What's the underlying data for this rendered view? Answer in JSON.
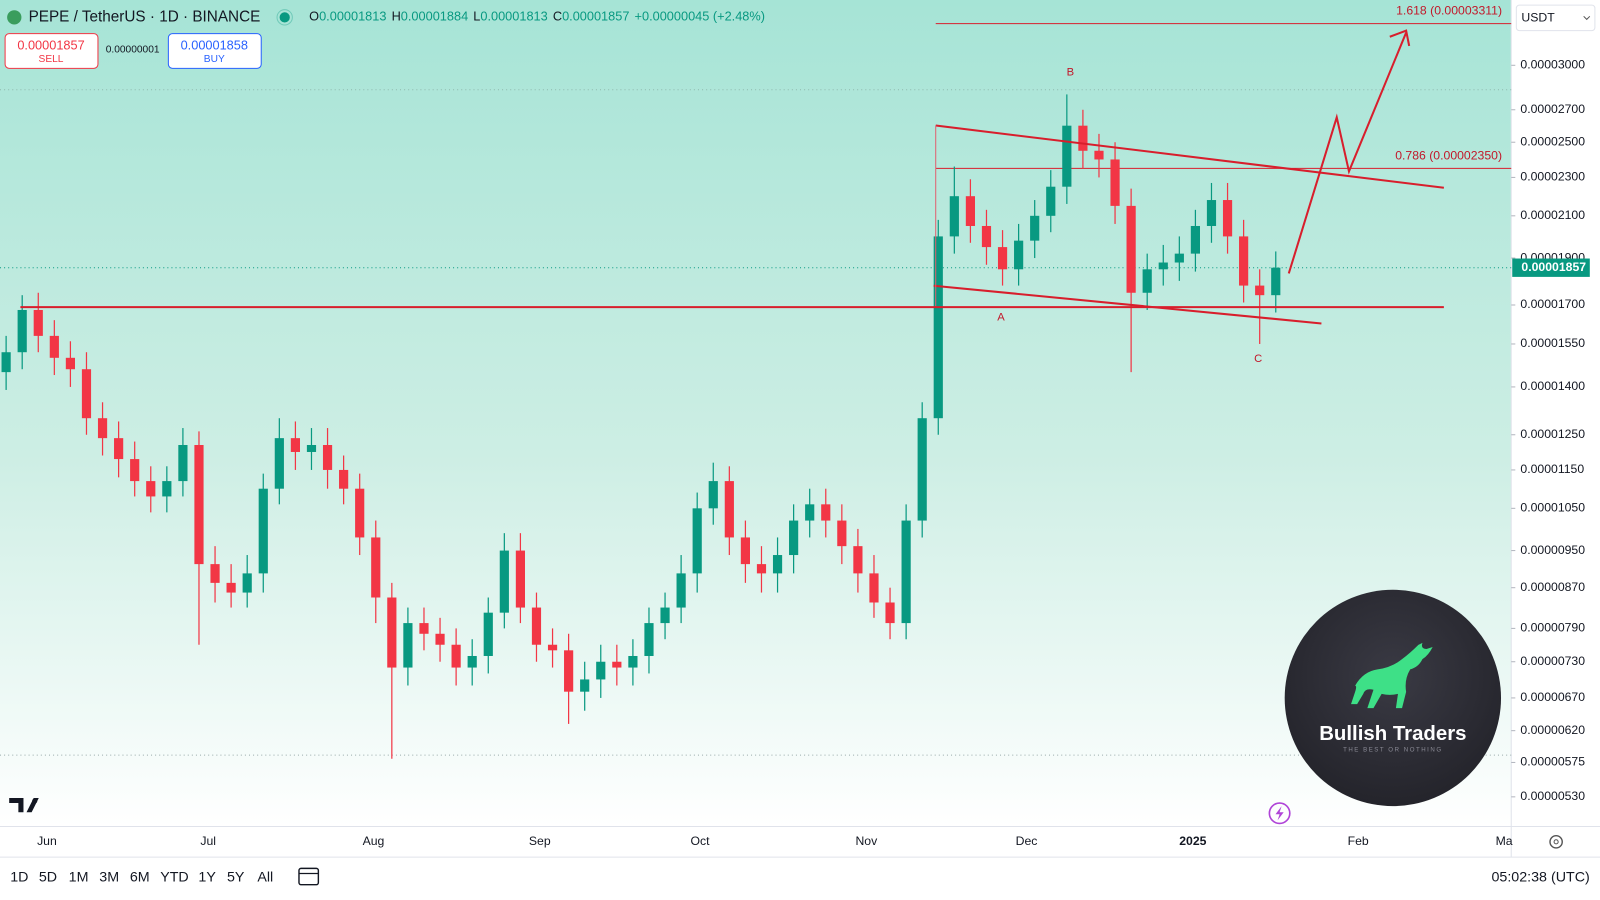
{
  "header": {
    "symbol": "PEPE / TetherUS · 1D · BINANCE",
    "ohlc": [
      {
        "k": "O",
        "v": "0.00001813"
      },
      {
        "k": "H",
        "v": "0.00001884"
      },
      {
        "k": "L",
        "v": "0.00001813"
      },
      {
        "k": "C",
        "v": "0.00001857"
      }
    ],
    "change": "+0.00000045 (+2.48%)"
  },
  "trade": {
    "sell_price": "0.00001857",
    "sell": "SELL",
    "spread": "0.00000001",
    "buy_price": "0.00001858",
    "buy": "BUY"
  },
  "currency": "USDT",
  "timeframes": [
    "1D",
    "5D",
    "1M",
    "3M",
    "6M",
    "YTD",
    "1Y",
    "5Y",
    "All"
  ],
  "clock": "05:02:38 (UTC)",
  "logo": {
    "title": "Bullish Traders",
    "tagline": "THE BEST OR NOTHING"
  },
  "chart_data": {
    "type": "candlestick",
    "log_scale": true,
    "grid": false,
    "up_color": "#089981",
    "down_color": "#f23645",
    "ylim": [
      4.94e-06,
      3.502e-05
    ],
    "yticks": [
      {
        "value": 3e-05,
        "label": "0.00003000"
      },
      {
        "value": 2.7e-05,
        "label": "0.00002700"
      },
      {
        "value": 2.5e-05,
        "label": "0.00002500"
      },
      {
        "value": 2.3e-05,
        "label": "0.00002300"
      },
      {
        "value": 2.1e-05,
        "label": "0.00002100"
      },
      {
        "value": 1.9e-05,
        "label": "0.00001900"
      },
      {
        "value": 1.7e-05,
        "label": "0.00001700"
      },
      {
        "value": 1.55e-05,
        "label": "0.00001550"
      },
      {
        "value": 1.4e-05,
        "label": "0.00001400"
      },
      {
        "value": 1.25e-05,
        "label": "0.00001250"
      },
      {
        "value": 1.15e-05,
        "label": "0.00001150"
      },
      {
        "value": 1.05e-05,
        "label": "0.00001050"
      },
      {
        "value": 9.5e-06,
        "label": "0.00000950"
      },
      {
        "value": 8.7e-06,
        "label": "0.00000870"
      },
      {
        "value": 7.9e-06,
        "label": "0.00000790"
      },
      {
        "value": 7.3e-06,
        "label": "0.00000730"
      },
      {
        "value": 6.7e-06,
        "label": "0.00000670"
      },
      {
        "value": 6.2e-06,
        "label": "0.00000620"
      },
      {
        "value": 5.75e-06,
        "label": "0.00000575"
      },
      {
        "value": 5.3e-06,
        "label": "0.00000530"
      }
    ],
    "x_labels": [
      "Jun",
      "Jul",
      "Aug",
      "Sep",
      "Oct",
      "Nov",
      "Dec",
      "2025",
      "Feb",
      "Ma"
    ],
    "last_price": {
      "value": 1.857e-05,
      "label": "0.00001857"
    },
    "fib_levels": [
      {
        "value": 3.311e-05,
        "label": "1.618 (0.00003311)"
      },
      {
        "value": 2.35e-05,
        "label": "0.786 (0.00002350)"
      }
    ],
    "wave_labels": [
      "B",
      "A",
      "C"
    ],
    "open": [
      1.45e-05,
      1.52e-05,
      1.68e-05,
      1.58e-05,
      1.5e-05,
      1.46e-05,
      1.3e-05,
      1.24e-05,
      1.18e-05,
      1.12e-05,
      1.08e-05,
      1.12e-05,
      1.22e-05,
      9.2e-06,
      8.8e-06,
      8.6e-06,
      9e-06,
      1.1e-05,
      1.24e-05,
      1.2e-05,
      1.22e-05,
      1.15e-05,
      1.1e-05,
      9.8e-06,
      8.5e-06,
      7.2e-06,
      8e-06,
      7.8e-06,
      7.6e-06,
      7.2e-06,
      7.4e-06,
      8.2e-06,
      9.5e-06,
      8.3e-06,
      7.6e-06,
      7.5e-06,
      6.8e-06,
      7e-06,
      7.3e-06,
      7.2e-06,
      7.4e-06,
      8e-06,
      8.3e-06,
      9e-06,
      1.05e-05,
      1.12e-05,
      9.8e-06,
      9.2e-06,
      9e-06,
      9.4e-06,
      1.02e-05,
      1.06e-05,
      1.02e-05,
      9.6e-06,
      9e-06,
      8.4e-06,
      8e-06,
      1.02e-05,
      1.3e-05,
      2e-05,
      2.2e-05,
      2.05e-05,
      1.95e-05,
      1.85e-05,
      1.98e-05,
      2.1e-05,
      2.25e-05,
      2.6e-05,
      2.45e-05,
      2.4e-05,
      2.15e-05,
      1.75e-05,
      1.85e-05,
      1.88e-05,
      1.92e-05,
      2.05e-05,
      2.18e-05,
      2e-05,
      1.78e-05,
      1.74e-05
    ],
    "high": [
      1.58e-05,
      1.74e-05,
      1.75e-05,
      1.64e-05,
      1.56e-05,
      1.52e-05,
      1.35e-05,
      1.29e-05,
      1.23e-05,
      1.16e-05,
      1.16e-05,
      1.27e-05,
      1.26e-05,
      9.6e-06,
      9.2e-06,
      9.4e-06,
      1.14e-05,
      1.3e-05,
      1.29e-05,
      1.27e-05,
      1.27e-05,
      1.19e-05,
      1.14e-05,
      1.02e-05,
      8.8e-06,
      8.3e-06,
      8.3e-06,
      8.1e-06,
      7.9e-06,
      7.7e-06,
      8.5e-06,
      9.9e-06,
      9.9e-06,
      8.6e-06,
      7.9e-06,
      7.8e-06,
      7.3e-06,
      7.6e-06,
      7.6e-06,
      7.7e-06,
      8.3e-06,
      8.6e-06,
      9.4e-06,
      1.09e-05,
      1.17e-05,
      1.16e-05,
      1.02e-05,
      9.6e-06,
      9.8e-06,
      1.06e-05,
      1.1e-05,
      1.1e-05,
      1.06e-05,
      1e-05,
      9.4e-06,
      8.7e-06,
      1.06e-05,
      1.35e-05,
      2.08e-05,
      2.36e-05,
      2.29e-05,
      2.13e-05,
      2.03e-05,
      2.06e-05,
      2.18e-05,
      2.34e-05,
      2.8e-05,
      2.7e-05,
      2.55e-05,
      2.5e-05,
      2.24e-05,
      1.92e-05,
      1.96e-05,
      2e-05,
      2.13e-05,
      2.27e-05,
      2.27e-05,
      2.08e-05,
      1.85e-05,
      1.93e-05
    ],
    "low": [
      1.39e-05,
      1.46e-05,
      1.52e-05,
      1.44e-05,
      1.4e-05,
      1.25e-05,
      1.19e-05,
      1.13e-05,
      1.08e-05,
      1.04e-05,
      1.04e-05,
      1.08e-05,
      7.6e-06,
      8.4e-06,
      8.3e-06,
      8.3e-06,
      8.6e-06,
      1.06e-05,
      1.15e-05,
      1.15e-05,
      1.1e-05,
      1.06e-05,
      9.4e-06,
      8e-06,
      5.8e-06,
      6.9e-06,
      7.5e-06,
      7.3e-06,
      6.9e-06,
      6.9e-06,
      7.1e-06,
      7.9e-06,
      8e-06,
      7.3e-06,
      7.2e-06,
      6.3e-06,
      6.5e-06,
      6.7e-06,
      6.9e-06,
      6.9e-06,
      7.1e-06,
      7.7e-06,
      8e-06,
      8.6e-06,
      1.01e-05,
      9.4e-06,
      8.8e-06,
      8.6e-06,
      8.6e-06,
      9e-06,
      9.8e-06,
      9.8e-06,
      9.2e-06,
      8.6e-06,
      8.1e-06,
      7.7e-06,
      7.7e-06,
      9.8e-06,
      1.25e-05,
      1.92e-05,
      1.97e-05,
      1.87e-05,
      1.78e-05,
      1.78e-05,
      1.9e-05,
      2.02e-05,
      2.16e-05,
      2.35e-05,
      2.3e-05,
      2.06e-05,
      1.45e-05,
      1.68e-05,
      1.78e-05,
      1.8e-05,
      1.84e-05,
      1.97e-05,
      1.92e-05,
      1.71e-05,
      1.55e-05,
      1.67e-05
    ],
    "close": [
      1.52e-05,
      1.68e-05,
      1.58e-05,
      1.5e-05,
      1.46e-05,
      1.3e-05,
      1.24e-05,
      1.18e-05,
      1.12e-05,
      1.08e-05,
      1.12e-05,
      1.22e-05,
      9.2e-06,
      8.8e-06,
      8.6e-06,
      9e-06,
      1.1e-05,
      1.24e-05,
      1.2e-05,
      1.22e-05,
      1.15e-05,
      1.1e-05,
      9.8e-06,
      8.5e-06,
      7.2e-06,
      8e-06,
      7.8e-06,
      7.6e-06,
      7.2e-06,
      7.4e-06,
      8.2e-06,
      9.5e-06,
      8.3e-06,
      7.6e-06,
      7.5e-06,
      6.8e-06,
      7e-06,
      7.3e-06,
      7.2e-06,
      7.4e-06,
      8e-06,
      8.3e-06,
      9e-06,
      1.05e-05,
      1.12e-05,
      9.8e-06,
      9.2e-06,
      9e-06,
      9.4e-06,
      1.02e-05,
      1.06e-05,
      1.02e-05,
      9.6e-06,
      9e-06,
      8.4e-06,
      8e-06,
      1.02e-05,
      1.3e-05,
      2e-05,
      2.2e-05,
      2.05e-05,
      1.95e-05,
      1.85e-05,
      1.98e-05,
      2.1e-05,
      2.25e-05,
      2.6e-05,
      2.45e-05,
      2.4e-05,
      2.15e-05,
      1.75e-05,
      1.85e-05,
      1.88e-05,
      1.92e-05,
      2.05e-05,
      2.18e-05,
      2e-05,
      1.78e-05,
      1.74e-05,
      1.857e-05
    ]
  }
}
